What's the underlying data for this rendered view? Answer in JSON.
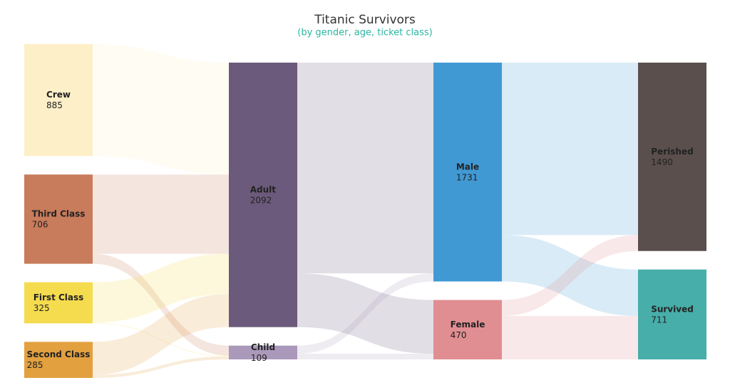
{
  "chart_data": {
    "type": "sankey",
    "title": "Titanic Survivors",
    "subtitle": "(by gender, age, ticket class)",
    "nodes": [
      {
        "name": "Crew",
        "value": 885,
        "color": "#fdefc8",
        "column": 0
      },
      {
        "name": "Third Class",
        "value": 706,
        "color": "#c87c5b",
        "column": 0
      },
      {
        "name": "First Class",
        "value": 325,
        "color": "#f5dc4f",
        "column": 0
      },
      {
        "name": "Second Class",
        "value": 285,
        "color": "#e2a03f",
        "column": 0
      },
      {
        "name": "Adult",
        "value": 2092,
        "color": "#6b5a7b",
        "column": 1
      },
      {
        "name": "Child",
        "value": 109,
        "color": "#ab99bb",
        "column": 1
      },
      {
        "name": "Male",
        "value": 1731,
        "color": "#4199d4",
        "column": 2
      },
      {
        "name": "Female",
        "value": 470,
        "color": "#e08e92",
        "column": 2
      },
      {
        "name": "Perished",
        "value": 1490,
        "color": "#5a4f4d",
        "column": 3
      },
      {
        "name": "Survived",
        "value": 711,
        "color": "#47aea9",
        "column": 3
      }
    ],
    "links": [
      {
        "source": 0,
        "target": 4,
        "value": 885
      },
      {
        "source": 1,
        "target": 4,
        "value": 627
      },
      {
        "source": 1,
        "target": 5,
        "value": 79
      },
      {
        "source": 2,
        "target": 4,
        "value": 319
      },
      {
        "source": 2,
        "target": 5,
        "value": 6
      },
      {
        "source": 3,
        "target": 4,
        "value": 261
      },
      {
        "source": 3,
        "target": 5,
        "value": 24
      },
      {
        "source": 4,
        "target": 6,
        "value": 1667
      },
      {
        "source": 4,
        "target": 7,
        "value": 425
      },
      {
        "source": 5,
        "target": 6,
        "value": 64
      },
      {
        "source": 5,
        "target": 7,
        "value": 45
      },
      {
        "source": 6,
        "target": 8,
        "value": 1364
      },
      {
        "source": 6,
        "target": 9,
        "value": 367
      },
      {
        "source": 7,
        "target": 8,
        "value": 126
      },
      {
        "source": 7,
        "target": 9,
        "value": 344
      }
    ]
  }
}
